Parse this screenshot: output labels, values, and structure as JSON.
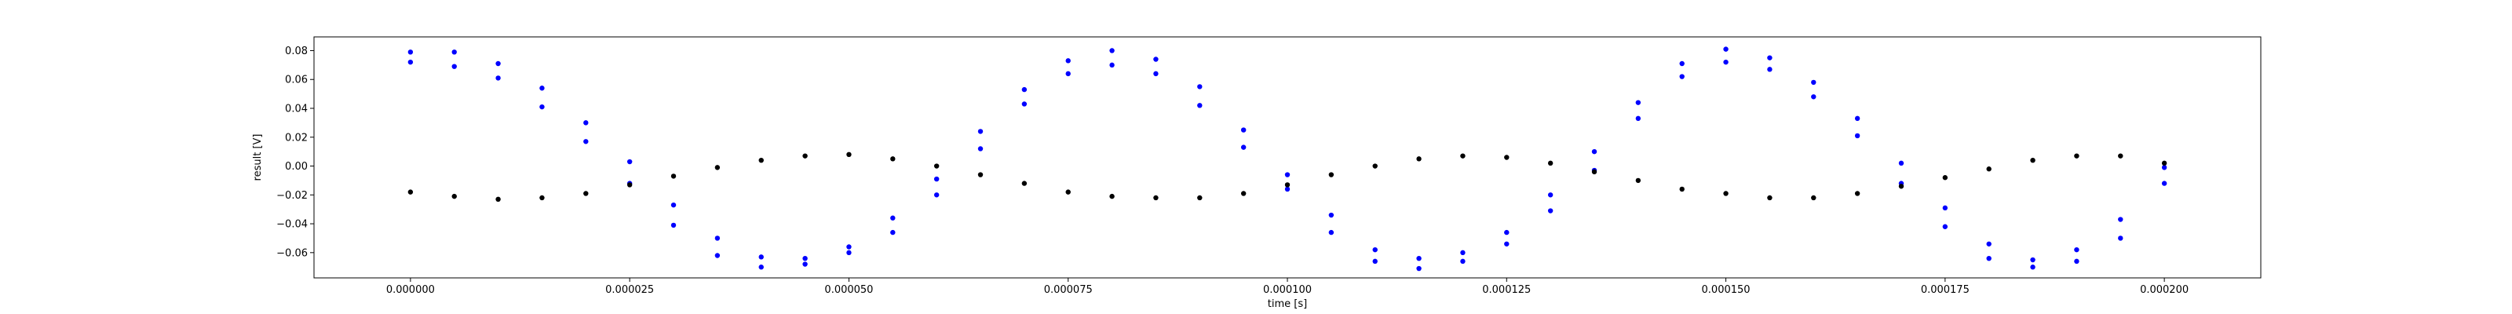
{
  "chart_data": {
    "type": "scatter",
    "title": "",
    "xlabel": "time [s]",
    "ylabel": "result [V]",
    "xlim": [
      -1.1e-05,
      0.000211
    ],
    "ylim": [
      -0.0775,
      0.0895
    ],
    "grid": false,
    "legend": "none",
    "xticks": [
      0.0,
      2.5e-05,
      5e-05,
      7.5e-05,
      0.0001,
      0.000125,
      0.00015,
      0.000175,
      0.0002
    ],
    "xtick_labels": [
      "0.000000",
      "0.000025",
      "0.000050",
      "0.000075",
      "0.000100",
      "0.000125",
      "0.000150",
      "0.000175",
      "0.000200"
    ],
    "yticks": [
      -0.06,
      -0.04,
      -0.02,
      0.0,
      0.02,
      0.04,
      0.06,
      0.08
    ],
    "ytick_labels": [
      "−0.06",
      "−0.04",
      "−0.02",
      "0.00",
      "0.02",
      "0.04",
      "0.06",
      "0.08"
    ],
    "series": [
      {
        "color": "#0000ff",
        "marker": "dot",
        "x": [
          0.0,
          5e-06,
          1e-05,
          1.5e-05,
          2e-05,
          2.5e-05,
          3e-05,
          3.5e-05,
          4e-05,
          4.5e-05,
          5e-05,
          5.5e-05,
          6e-05,
          6.5e-05,
          7e-05,
          7.5e-05,
          8e-05,
          8.5e-05,
          9e-05,
          9.5e-05,
          0.0001,
          0.000105,
          0.00011,
          0.000115,
          0.00012,
          0.000125,
          0.00013,
          0.000135,
          0.00014,
          0.000145,
          0.00015,
          0.000155,
          0.00016,
          0.000165,
          0.00017,
          0.000175,
          0.00018,
          0.000185,
          0.00019,
          0.000195,
          0.0002
        ],
        "y_upper": [
          0.079,
          0.079,
          0.071,
          0.054,
          0.03,
          0.003,
          -0.027,
          -0.05,
          -0.063,
          -0.064,
          -0.056,
          -0.036,
          -0.009,
          0.024,
          0.053,
          0.073,
          0.08,
          0.074,
          0.055,
          0.025,
          -0.006,
          -0.034,
          -0.058,
          -0.064,
          -0.06,
          -0.046,
          -0.02,
          0.01,
          0.044,
          0.071,
          0.081,
          0.075,
          0.058,
          0.033,
          0.002,
          -0.029,
          -0.054,
          -0.065,
          -0.058,
          -0.037,
          -0.001
        ],
        "y_lower": [
          0.072,
          0.069,
          0.061,
          0.041,
          0.017,
          -0.012,
          -0.041,
          -0.062,
          -0.07,
          -0.068,
          -0.06,
          -0.046,
          -0.02,
          0.012,
          0.043,
          0.064,
          0.07,
          0.064,
          0.042,
          0.013,
          -0.016,
          -0.046,
          -0.066,
          -0.071,
          -0.066,
          -0.054,
          -0.031,
          -0.003,
          0.033,
          0.062,
          0.072,
          0.067,
          0.048,
          0.021,
          -0.012,
          -0.042,
          -0.064,
          -0.07,
          -0.066,
          -0.05,
          -0.012
        ]
      },
      {
        "color": "#000000",
        "marker": "dot",
        "x": [
          0.0,
          5e-06,
          1e-05,
          1.5e-05,
          2e-05,
          2.5e-05,
          3e-05,
          3.5e-05,
          4e-05,
          4.5e-05,
          5e-05,
          5.5e-05,
          6e-05,
          6.5e-05,
          7e-05,
          7.5e-05,
          8e-05,
          8.5e-05,
          9e-05,
          9.5e-05,
          0.0001,
          0.000105,
          0.00011,
          0.000115,
          0.00012,
          0.000125,
          0.00013,
          0.000135,
          0.00014,
          0.000145,
          0.00015,
          0.000155,
          0.00016,
          0.000165,
          0.00017,
          0.000175,
          0.00018,
          0.000185,
          0.00019,
          0.000195,
          0.0002
        ],
        "y": [
          -0.018,
          -0.021,
          -0.023,
          -0.022,
          -0.019,
          -0.013,
          -0.007,
          -0.001,
          0.004,
          0.007,
          0.008,
          0.005,
          0.0,
          -0.006,
          -0.012,
          -0.018,
          -0.021,
          -0.022,
          -0.022,
          -0.019,
          -0.013,
          -0.006,
          0.0,
          0.005,
          0.007,
          0.006,
          0.002,
          -0.004,
          -0.01,
          -0.016,
          -0.019,
          -0.022,
          -0.022,
          -0.019,
          -0.014,
          -0.008,
          -0.002,
          0.004,
          0.007,
          0.007,
          0.002
        ]
      }
    ]
  }
}
